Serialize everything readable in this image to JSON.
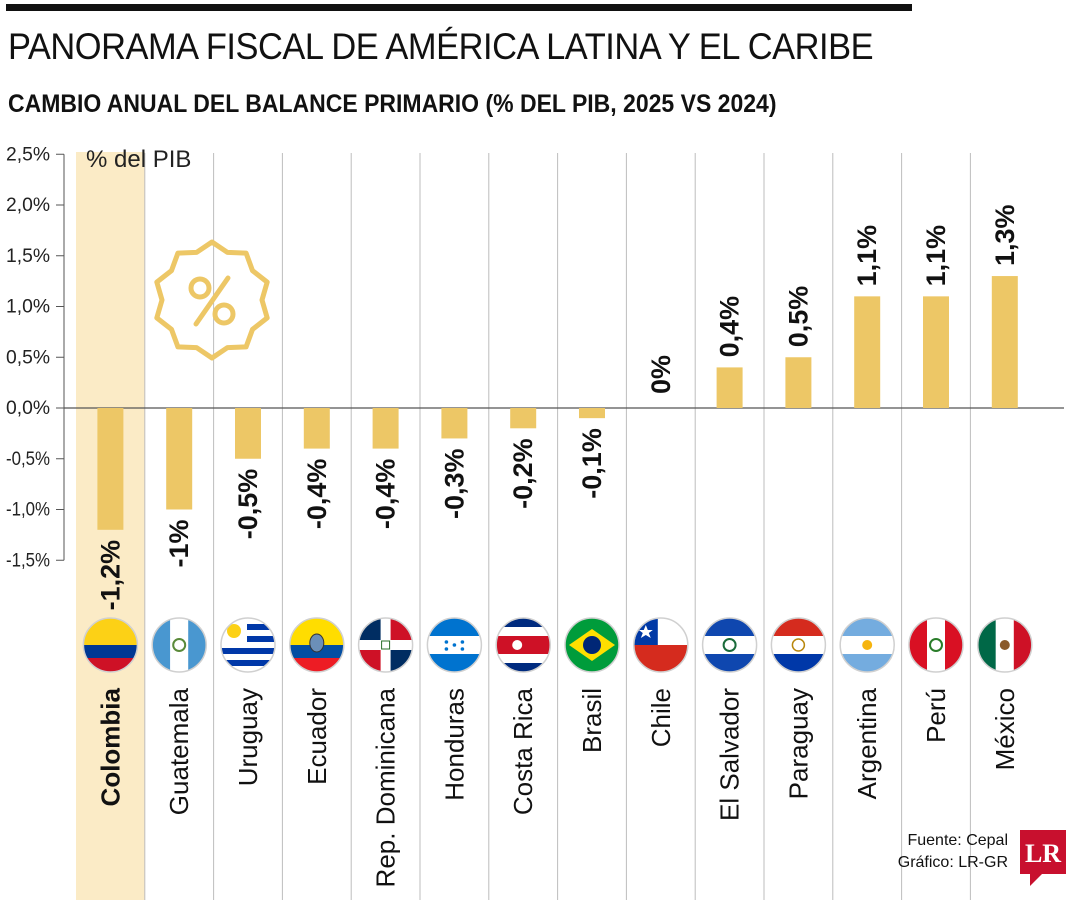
{
  "header": {
    "title": "PANORAMA FISCAL DE AMÉRICA LATINA Y EL CARIBE",
    "subtitle": "CAMBIO ANUAL DEL BALANCE PRIMARIO (% DEL PIB, 2025 VS 2024)"
  },
  "footer": {
    "source": "Fuente: Cepal",
    "credit": "Gráfico: LR-GR",
    "logo_text": "LR"
  },
  "colors": {
    "bar": "#EDC766",
    "highlight": "#FBEBC6",
    "logo": "#C8102E"
  },
  "chart_data": {
    "type": "bar",
    "ylabel": "% del PIB",
    "ylim": [
      -1.5,
      2.5
    ],
    "yticks": [
      2.5,
      2.0,
      1.5,
      1.0,
      0.5,
      0.0,
      -0.5,
      -1.0,
      -1.5
    ],
    "ytick_labels": [
      "2,5%",
      "2,0%",
      "1,5%",
      "1,0%",
      "0,5%",
      "0,0%",
      "-0,5%",
      "-1,0%",
      "-1,5%"
    ],
    "categories": [
      "Colombia",
      "Guatemala",
      "Uruguay",
      "Ecuador",
      "Rep. Dominicana",
      "Honduras",
      "Costa Rica",
      "Brasil",
      "Chile",
      "El Salvador",
      "Paraguay",
      "Argentina",
      "Perú",
      "México"
    ],
    "values": [
      -1.2,
      -1.0,
      -0.5,
      -0.4,
      -0.4,
      -0.3,
      -0.2,
      -0.1,
      0,
      0.4,
      0.5,
      1.1,
      1.1,
      1.3
    ],
    "data_labels": [
      "-1,2%",
      "-1%",
      "-0,5%",
      "-0,4%",
      "-0,4%",
      "-0,3%",
      "-0,2%",
      "-0,1%",
      "0%",
      "0,4%",
      "0,5%",
      "1,1%",
      "1,1%",
      "1,3%"
    ],
    "highlight": "Colombia",
    "flag_icons": [
      "colombia-flag-icon",
      "guatemala-flag-icon",
      "uruguay-flag-icon",
      "ecuador-flag-icon",
      "dominican-republic-flag-icon",
      "honduras-flag-icon",
      "costa-rica-flag-icon",
      "brazil-flag-icon",
      "chile-flag-icon",
      "el-salvador-flag-icon",
      "paraguay-flag-icon",
      "argentina-flag-icon",
      "peru-flag-icon",
      "mexico-flag-icon"
    ],
    "decorative_icon": "percent-badge-icon",
    "grid": "vertical"
  }
}
